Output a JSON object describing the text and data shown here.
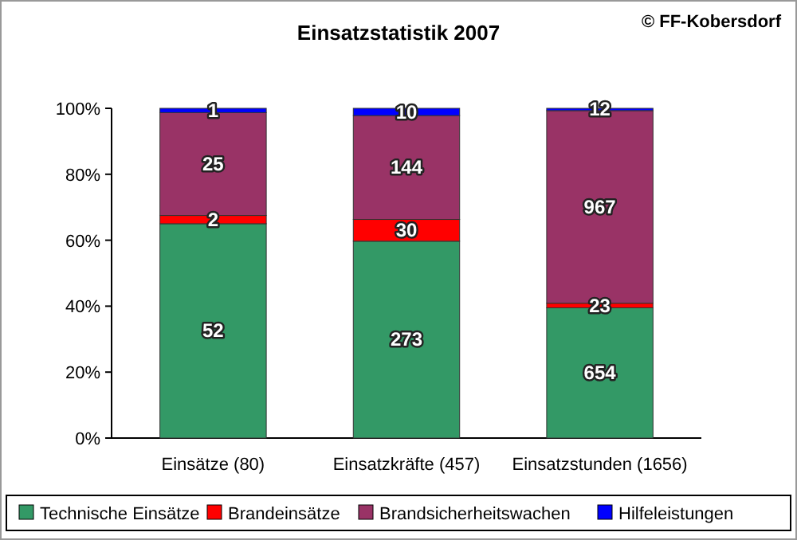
{
  "chart_data": {
    "type": "bar",
    "title": "Einsatzstatistik 2007",
    "stacked": true,
    "legend": "bottom",
    "annotations": [
      "© FF-Kobersdorf",
      "52",
      "2",
      "25",
      "1",
      "273",
      "30",
      "144",
      "10",
      "654",
      "23",
      "967",
      "12"
    ],
    "categories": [
      "Einsätze (80)",
      "Einsatzkräfte (457)",
      "Einsatzstunden (1656)"
    ],
    "ylim": [
      0,
      100
    ],
    "yticks": [
      {
        "value": 0,
        "label": "0%"
      },
      {
        "value": 20,
        "label": "20%"
      },
      {
        "value": 40,
        "label": "40%"
      },
      {
        "value": 60,
        "label": "60%"
      },
      {
        "value": 80,
        "label": "80%"
      },
      {
        "value": 100,
        "label": "100%"
      }
    ],
    "series": [
      {
        "name": "Technische Einsätze",
        "color": "#339966",
        "values": [
          65,
          59.7,
          39.5
        ]
      },
      {
        "name": "Brandeinsätze",
        "color": "#ff0000",
        "values": [
          2.5,
          6.6,
          1.4
        ]
      },
      {
        "name": "Brandsicherheitswachen",
        "color": "#993366",
        "values": [
          31.2,
          31.5,
          58.4
        ]
      },
      {
        "name": "Hilfeleistungen",
        "color": "#0000ff",
        "values": [
          1.3,
          2.2,
          0.7
        ]
      }
    ]
  }
}
